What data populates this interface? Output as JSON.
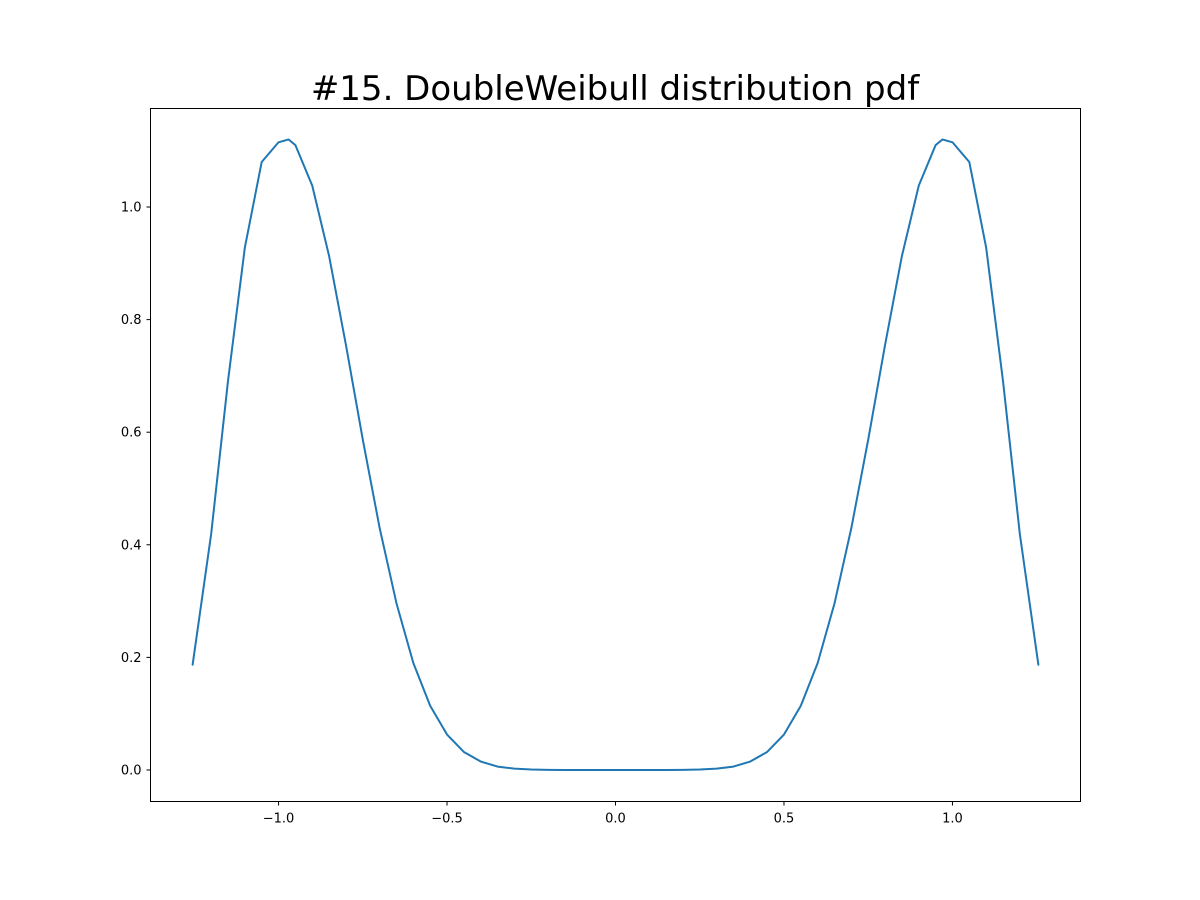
{
  "chart_data": {
    "type": "line",
    "title": "#15. DoubleWeibull distribution pdf",
    "xlabel": "",
    "ylabel": "",
    "xlim": [
      -1.38,
      1.38
    ],
    "ylim": [
      -0.056,
      1.175
    ],
    "grid": false,
    "legend": "none",
    "x_ticks": [
      {
        "value": -1.0,
        "label": "−1.0"
      },
      {
        "value": -0.5,
        "label": "−0.5"
      },
      {
        "value": 0.0,
        "label": "0.0"
      },
      {
        "value": 0.5,
        "label": "0.5"
      },
      {
        "value": 1.0,
        "label": "1.0"
      }
    ],
    "y_ticks": [
      {
        "value": 0.0,
        "label": "0.0"
      },
      {
        "value": 0.2,
        "label": "0.2"
      },
      {
        "value": 0.4,
        "label": "0.4"
      },
      {
        "value": 0.6,
        "label": "0.6"
      },
      {
        "value": 0.8,
        "label": "0.8"
      },
      {
        "value": 1.0,
        "label": "1.0"
      }
    ],
    "series": [
      {
        "color": "#1f77b4",
        "x": [
          -1.255,
          -1.2,
          -1.15,
          -1.1,
          -1.05,
          -1.0,
          -0.97,
          -0.95,
          -0.9,
          -0.85,
          -0.8,
          -0.75,
          -0.7,
          -0.65,
          -0.6,
          -0.55,
          -0.5,
          -0.45,
          -0.4,
          -0.35,
          -0.3,
          -0.25,
          -0.2,
          -0.15,
          -0.1,
          -0.05,
          0.0,
          0.05,
          0.1,
          0.15,
          0.2,
          0.25,
          0.3,
          0.35,
          0.4,
          0.45,
          0.5,
          0.55,
          0.6,
          0.65,
          0.7,
          0.75,
          0.8,
          0.85,
          0.9,
          0.95,
          0.97,
          1.0,
          1.05,
          1.1,
          1.15,
          1.2,
          1.255
        ],
        "y": [
          0.187,
          0.419,
          0.691,
          0.928,
          1.08,
          1.115,
          1.12,
          1.11,
          1.038,
          0.913,
          0.755,
          0.587,
          0.43,
          0.296,
          0.19,
          0.114,
          0.063,
          0.032,
          0.015,
          0.006,
          0.0024,
          0.0008,
          0.0002,
          0.0,
          0.0,
          0.0,
          0.0,
          0.0,
          0.0,
          0.0,
          0.0002,
          0.0008,
          0.0024,
          0.006,
          0.015,
          0.032,
          0.063,
          0.114,
          0.19,
          0.296,
          0.43,
          0.587,
          0.755,
          0.913,
          1.038,
          1.11,
          1.12,
          1.115,
          1.08,
          0.928,
          0.691,
          0.419,
          0.187
        ]
      }
    ]
  }
}
